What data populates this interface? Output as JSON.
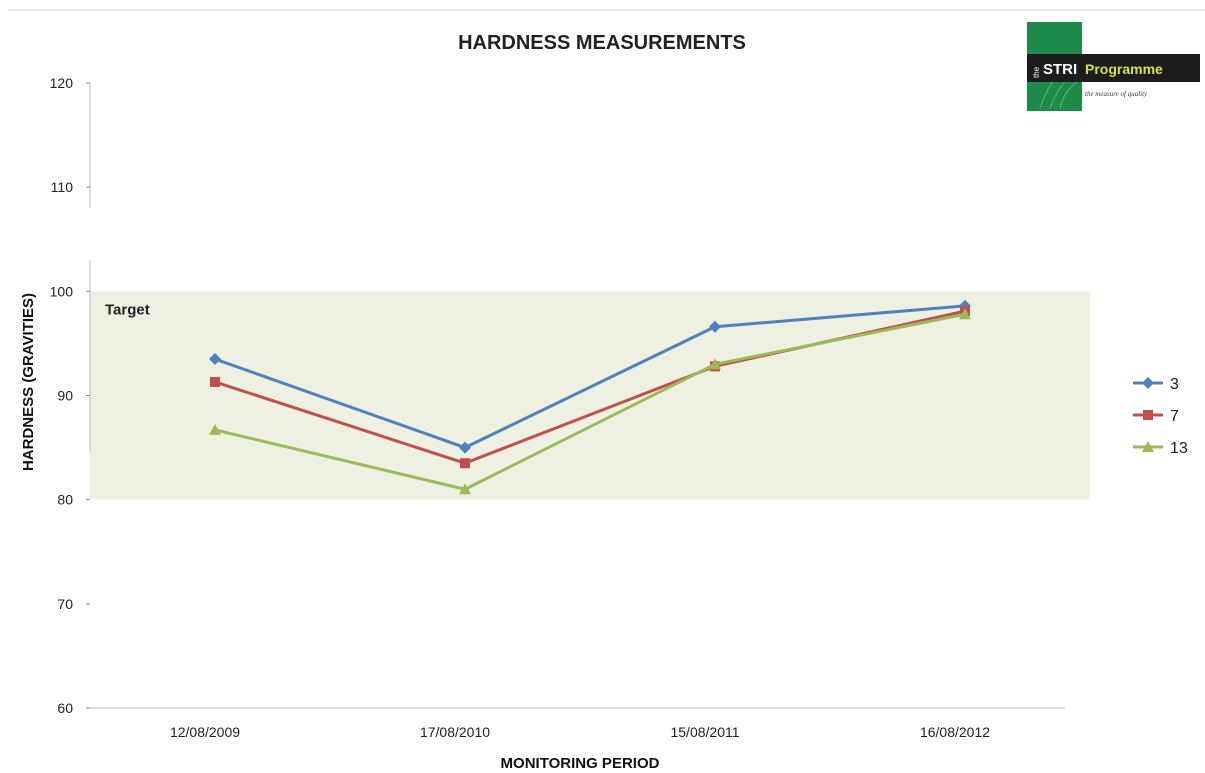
{
  "logo": {
    "the": "the",
    "name": "STRI",
    "programme": "Programme",
    "tagline": "the measure of quality",
    "green": "#1e8a4a",
    "dark": "#1c1c1c"
  },
  "chart_data": {
    "type": "line",
    "title": "HARDNESS MEASUREMENTS",
    "xlabel": "MONITORING PERIOD",
    "ylabel": "HARDNESS (GRAVITIES)",
    "categories": [
      "12/08/2009",
      "17/08/2010",
      "15/08/2011",
      "16/08/2012"
    ],
    "ylim": [
      60,
      120
    ],
    "yticks": [
      "60",
      "70",
      "80",
      "90",
      "100",
      "110",
      "120"
    ],
    "grid": false,
    "target_band": {
      "label": "Target",
      "from": 80,
      "to": 100,
      "color": "#eef1e1"
    },
    "legend_position": "right",
    "series": [
      {
        "name": "3",
        "marker": "diamond",
        "color": "#4f81bd",
        "values": [
          93.5,
          85,
          96.6,
          98.6
        ]
      },
      {
        "name": "7",
        "marker": "square",
        "color": "#c0504d",
        "values": [
          91.3,
          83.5,
          92.8,
          98.1
        ]
      },
      {
        "name": "13",
        "marker": "triangle",
        "color": "#9bbb59",
        "values": [
          86.7,
          81,
          93,
          97.8
        ]
      }
    ]
  }
}
